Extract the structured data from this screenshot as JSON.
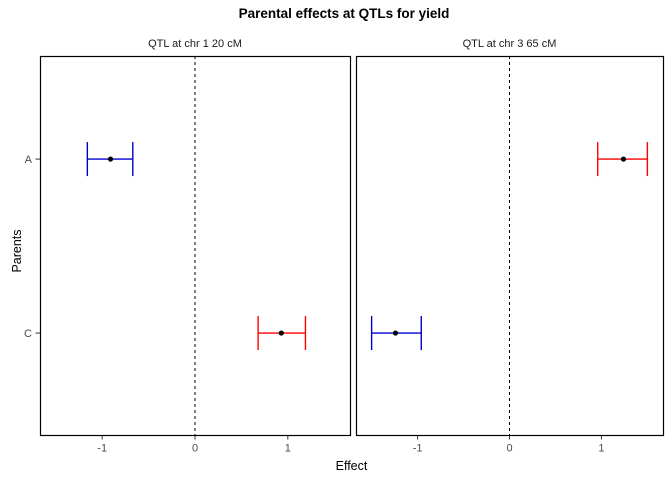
{
  "title": "Parental effects at QTLs for yield",
  "chart_data": {
    "type": "scatter",
    "subtype": "dot-and-errorbar, 2 facets, horizontal CIs",
    "title": "Parental effects at QTLs for yield",
    "xlabel": "Effect",
    "ylabel": "Parents",
    "categories": [
      "A",
      "C"
    ],
    "x_ticks": [
      -1,
      0,
      1
    ],
    "xlim": [
      -1.67,
      1.67
    ],
    "grid": false,
    "zero_line": {
      "x": 0,
      "style": "dashed",
      "color": "#000000"
    },
    "point_color": "#000000",
    "panels": [
      {
        "label": "QTL at chr 1 20 cM",
        "points": [
          {
            "parent": "A",
            "estimate": -0.91,
            "ci_low": -1.16,
            "ci_high": -0.67,
            "color": "#0000CD"
          },
          {
            "parent": "C",
            "estimate": 0.93,
            "ci_low": 0.68,
            "ci_high": 1.19,
            "color": "#FF0000"
          }
        ]
      },
      {
        "label": "QTL at chr 3 65 cM",
        "points": [
          {
            "parent": "A",
            "estimate": 1.24,
            "ci_low": 0.96,
            "ci_high": 1.5,
            "color": "#FF0000"
          },
          {
            "parent": "C",
            "estimate": -1.24,
            "ci_low": -1.5,
            "ci_high": -0.96,
            "color": "#0000CD"
          }
        ]
      }
    ],
    "colors": {
      "negative_parent_effect": "#0000CD",
      "positive_parent_effect": "#FF0000",
      "axis_text": "#4d4d4d",
      "panel_border": "#000000"
    }
  }
}
